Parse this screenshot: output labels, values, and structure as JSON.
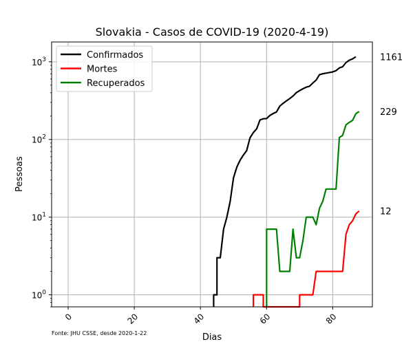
{
  "chart_data": {
    "type": "line",
    "title": "Slovakia - Casos de COVID-19 (2020-4-19)",
    "xlabel": "Dias",
    "ylabel": "Pessoas",
    "yscale": "log",
    "xlim": [
      -5,
      92
    ],
    "ylim": [
      0.7,
      1800
    ],
    "x_ticks": [
      "0",
      "20",
      "40",
      "60",
      "80"
    ],
    "y_ticks": [
      "10^0",
      "10^1",
      "10^2",
      "10^3"
    ],
    "grid": true,
    "legend_position": "top-left",
    "source_note": "Fonte: JHU CSSE, desde 2020-1-22",
    "series": [
      {
        "name": "Confirmados",
        "color": "#000000",
        "end_label": "1161",
        "points": [
          [
            44,
            0.7
          ],
          [
            44,
            1
          ],
          [
            45,
            1
          ],
          [
            45,
            3
          ],
          [
            46,
            3
          ],
          [
            47,
            7
          ],
          [
            48,
            10
          ],
          [
            49,
            16
          ],
          [
            50,
            32
          ],
          [
            51,
            44
          ],
          [
            52,
            54
          ],
          [
            53,
            63
          ],
          [
            54,
            72
          ],
          [
            55,
            105
          ],
          [
            56,
            123
          ],
          [
            57,
            137
          ],
          [
            58,
            178
          ],
          [
            59,
            185
          ],
          [
            60,
            186
          ],
          [
            61,
            204
          ],
          [
            62,
            216
          ],
          [
            63,
            226
          ],
          [
            64,
            269
          ],
          [
            65,
            292
          ],
          [
            66,
            314
          ],
          [
            67,
            336
          ],
          [
            68,
            363
          ],
          [
            69,
            400
          ],
          [
            70,
            426
          ],
          [
            71,
            450
          ],
          [
            72,
            471
          ],
          [
            73,
            485
          ],
          [
            74,
            534
          ],
          [
            75,
            581
          ],
          [
            76,
            682
          ],
          [
            77,
            701
          ],
          [
            78,
            715
          ],
          [
            79,
            728
          ],
          [
            80,
            742
          ],
          [
            81,
            769
          ],
          [
            82,
            835
          ],
          [
            83,
            863
          ],
          [
            84,
            977
          ],
          [
            85,
            1049
          ],
          [
            86,
            1089
          ],
          [
            87,
            1161
          ]
        ]
      },
      {
        "name": "Mortes",
        "color": "#ff0000",
        "end_label": "12",
        "points": [
          [
            56,
            0.7
          ],
          [
            56,
            1
          ],
          [
            59,
            1
          ],
          [
            59,
            0.7
          ],
          [
            70,
            0.7
          ],
          [
            70,
            1
          ],
          [
            74,
            1
          ],
          [
            75,
            2
          ],
          [
            83,
            2
          ],
          [
            84,
            6
          ],
          [
            85,
            8
          ],
          [
            86,
            9
          ],
          [
            87,
            11
          ],
          [
            88,
            12
          ]
        ]
      },
      {
        "name": "Recuperados",
        "color": "#008000",
        "end_label": "229",
        "points": [
          [
            60,
            0.7
          ],
          [
            60,
            7
          ],
          [
            63,
            7
          ],
          [
            64,
            2
          ],
          [
            67,
            2
          ],
          [
            68,
            7
          ],
          [
            69,
            3
          ],
          [
            70,
            3
          ],
          [
            71,
            5
          ],
          [
            72,
            10
          ],
          [
            74,
            10
          ],
          [
            75,
            8
          ],
          [
            76,
            13
          ],
          [
            77,
            16
          ],
          [
            78,
            23
          ],
          [
            81,
            23
          ],
          [
            82,
            106
          ],
          [
            83,
            113
          ],
          [
            84,
            154
          ],
          [
            85,
            166
          ],
          [
            86,
            176
          ],
          [
            87,
            215
          ],
          [
            88,
            229
          ]
        ]
      }
    ]
  }
}
